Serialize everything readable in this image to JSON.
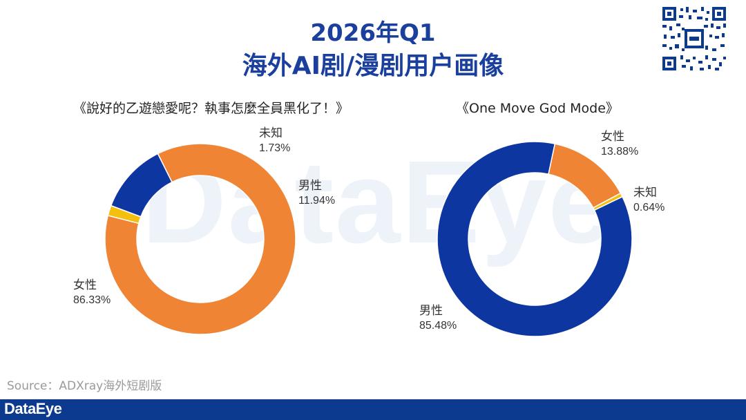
{
  "header": {
    "title_line1": "2026年Q1",
    "title_line2": "海外AI剧/漫剧用户画像"
  },
  "watermark": "DataEye",
  "chart_data": [
    {
      "type": "pie",
      "variant": "donut",
      "title": "《說好的乙遊戀愛呢？執事怎麼全員黑化了！》",
      "slices": [
        {
          "label": "女性",
          "value": 86.33,
          "display": "86.33%",
          "color": "#ee8434"
        },
        {
          "label": "未知",
          "value": 1.73,
          "display": "1.73%",
          "color": "#f5bf10"
        },
        {
          "label": "男性",
          "value": 11.94,
          "display": "11.94%",
          "color": "#0d36a0"
        }
      ]
    },
    {
      "type": "pie",
      "variant": "donut",
      "title": "《One Move God Mode》",
      "slices": [
        {
          "label": "女性",
          "value": 13.88,
          "display": "13.88%",
          "color": "#ee8434"
        },
        {
          "label": "未知",
          "value": 0.64,
          "display": "0.64%",
          "color": "#f5bf10"
        },
        {
          "label": "男性",
          "value": 85.48,
          "display": "85.48%",
          "color": "#0d36a0"
        }
      ]
    }
  ],
  "source": "Source：ADXray海外短剧版",
  "footer": {
    "brand": "DataEye"
  }
}
